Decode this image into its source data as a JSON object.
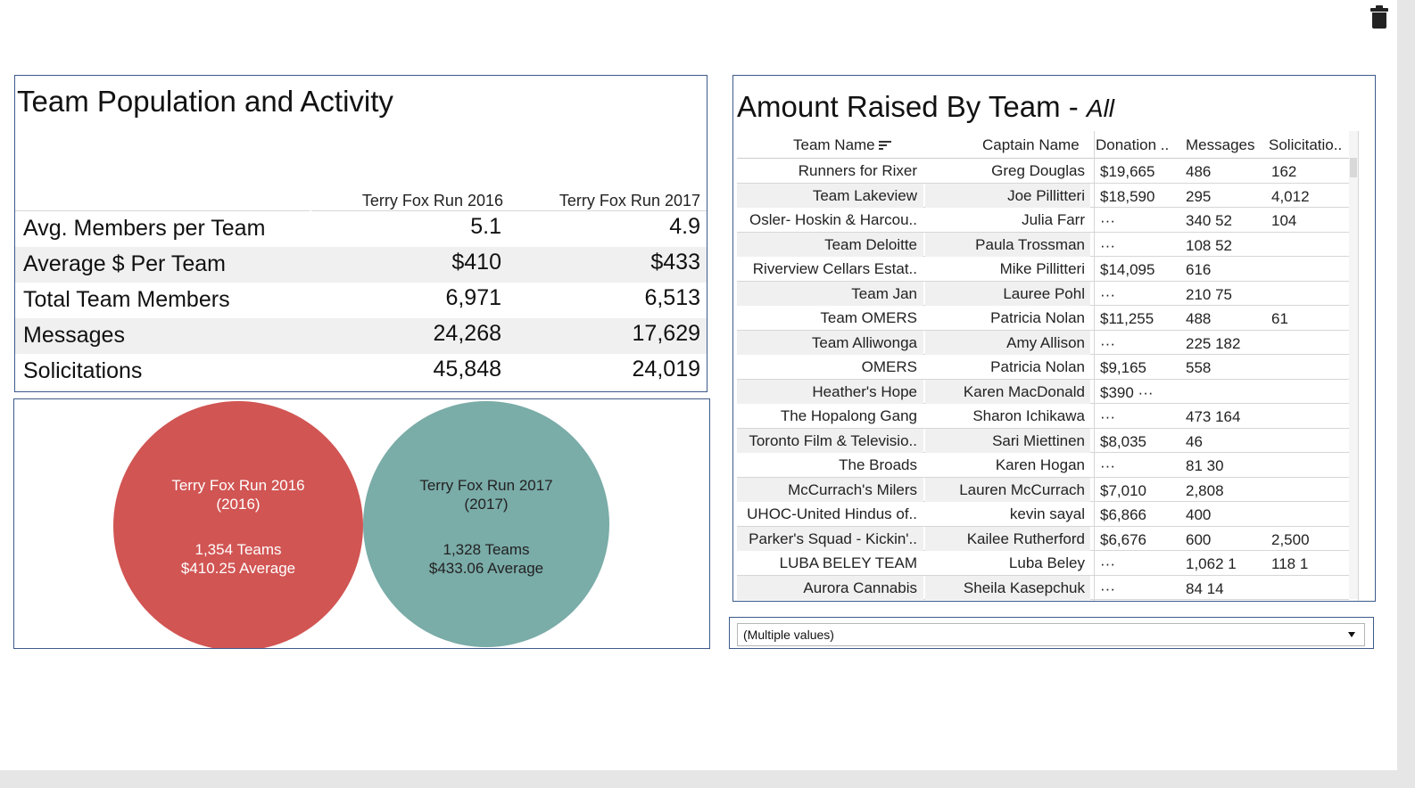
{
  "left_panel": {
    "title": "Team Population and Activity",
    "columns": [
      "Terry Fox Run 2016",
      "Terry Fox Run 2017"
    ],
    "rows": [
      {
        "label": "Avg. Members per Team",
        "v2016": "5.1",
        "v2017": "4.9"
      },
      {
        "label": "Average $ Per Team",
        "v2016": "$410",
        "v2017": "$433"
      },
      {
        "label": "Total Team Members",
        "v2016": "6,971",
        "v2017": "6,513"
      },
      {
        "label": "Messages",
        "v2016": "24,268",
        "v2017": "17,629"
      },
      {
        "label": "Solicitations",
        "v2016": "45,848",
        "v2017": "24,019"
      }
    ]
  },
  "bubbles": [
    {
      "name": "Terry Fox Run 2016",
      "year": "(2016)",
      "teams": "1,354 Teams",
      "average": "$410.25 Average",
      "color": "#d15553"
    },
    {
      "name": "Terry Fox Run 2017",
      "year": "(2017)",
      "teams": "1,328 Teams",
      "average": "$433.06 Average",
      "color": "#7aaca8"
    }
  ],
  "right_panel": {
    "title": "Amount Raised By Team - ",
    "title_suffix": "All",
    "headers": {
      "team": "Team Name",
      "captain": "Captain Name",
      "donation": "Donation ..",
      "messages": "Messages",
      "solicitations": "Solicitatio.."
    },
    "rows": [
      {
        "team": "Runners for Rixer",
        "captain": "Greg Douglas",
        "donation": "$19,665",
        "messages": "486",
        "solicitations": "162"
      },
      {
        "team": "Team Lakeview",
        "captain": "Joe Pillitteri",
        "donation": "$18,590",
        "messages": "295",
        "solicitations": "4,012"
      },
      {
        "team": "Osler- Hoskin & Harcou..",
        "captain": "Julia Farr",
        "donation": "···",
        "messages": "340  52",
        "solicitations": "104"
      },
      {
        "team": "Team Deloitte",
        "captain": "Paula Trossman",
        "donation": "···",
        "messages": "108  52",
        "solicitations": ""
      },
      {
        "team": "Riverview Cellars Estat..",
        "captain": "Mike Pillitteri",
        "donation": "$14,095",
        "messages": "616",
        "solicitations": ""
      },
      {
        "team": "Team Jan",
        "captain": "Lauree Pohl",
        "donation": "···",
        "messages": "210  75",
        "solicitations": ""
      },
      {
        "team": "Team OMERS",
        "captain": "Patricia Nolan",
        "donation": "$11,255",
        "messages": "488",
        "solicitations": "61"
      },
      {
        "team": "Team Alliwonga",
        "captain": "Amy Allison",
        "donation": "···",
        "messages": "225  182",
        "solicitations": ""
      },
      {
        "team": "OMERS",
        "captain": "Patricia Nolan",
        "donation": "$9,165",
        "messages": "558",
        "solicitations": ""
      },
      {
        "team": "Heather's Hope",
        "captain": "Karen MacDonald",
        "donation": "$390  ···",
        "messages": "",
        "solicitations": ""
      },
      {
        "team": "The Hopalong Gang",
        "captain": "Sharon Ichikawa",
        "donation": "···",
        "messages": "473  164",
        "solicitations": ""
      },
      {
        "team": "Toronto Film & Televisio..",
        "captain": "Sari Miettinen",
        "donation": "$8,035",
        "messages": "46",
        "solicitations": ""
      },
      {
        "team": "The Broads",
        "captain": "Karen Hogan",
        "donation": "···",
        "messages": "81  30",
        "solicitations": ""
      },
      {
        "team": "McCurrach's Milers",
        "captain": "Lauren McCurrach",
        "donation": "$7,010",
        "messages": "2,808",
        "solicitations": ""
      },
      {
        "team": "UHOC-United Hindus of..",
        "captain": "kevin sayal",
        "donation": "$6,866",
        "messages": "400",
        "solicitations": ""
      },
      {
        "team": "Parker's Squad - Kickin'..",
        "captain": "Kailee Rutherford",
        "donation": "$6,676",
        "messages": "600",
        "solicitations": "2,500"
      },
      {
        "team": "LUBA BELEY TEAM",
        "captain": "Luba Beley",
        "donation": "···",
        "messages": "1,062  1",
        "solicitations": "118  1"
      },
      {
        "team": "Aurora Cannabis",
        "captain": "Sheila Kasepchuk",
        "donation": "···",
        "messages": "84  14",
        "solicitations": ""
      }
    ]
  },
  "filter": {
    "value": "(Multiple values)"
  },
  "icons": {
    "trash": "trash-icon",
    "sort": "sort-descending-icon",
    "dropdown": "chevron-down-icon"
  }
}
